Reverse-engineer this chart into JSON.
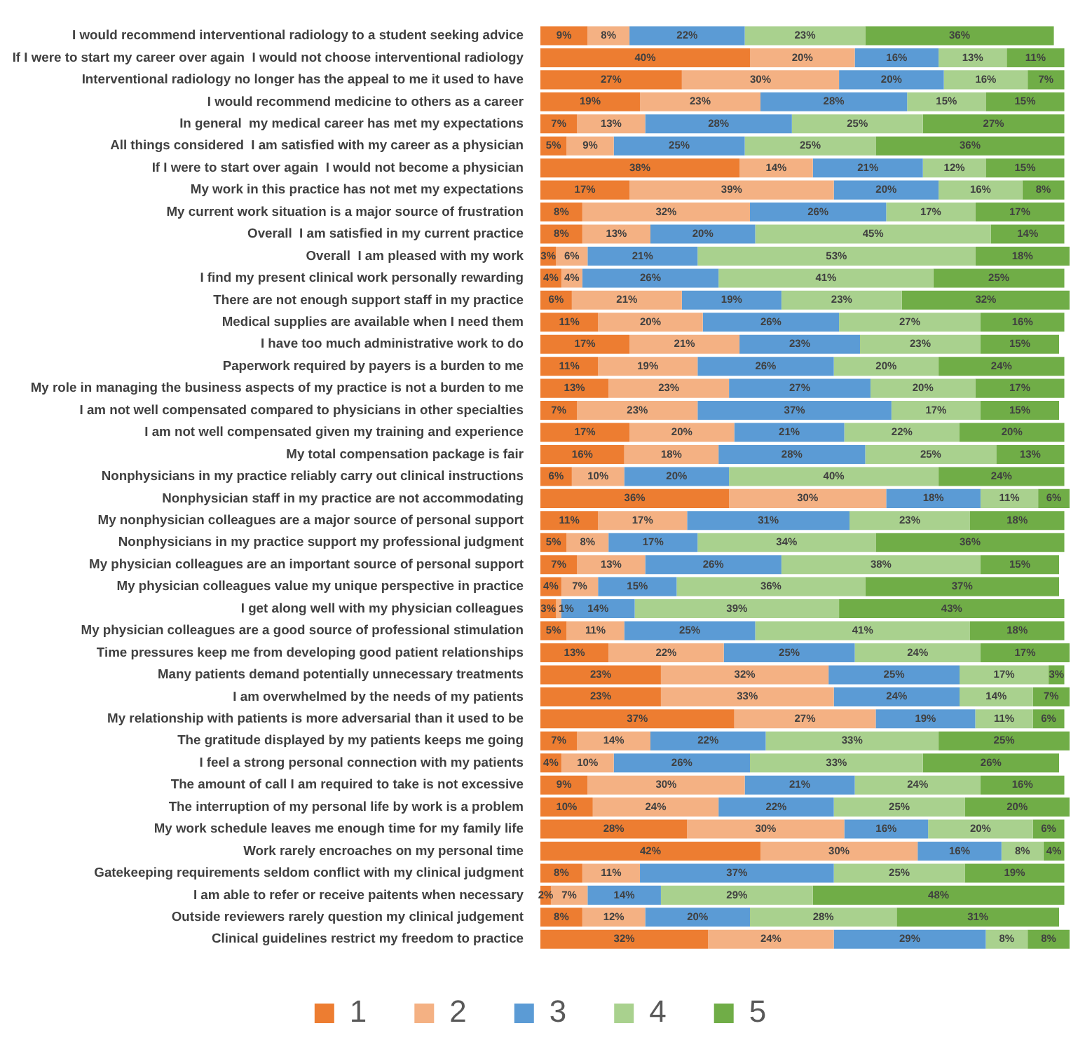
{
  "chart_data": {
    "type": "bar",
    "orientation": "horizontal",
    "stacked": true,
    "legend": "bottom",
    "categories": [
      "I would recommend interventional radiology to a student seeking advice",
      "If I were to start my career over again  I would not choose interventional radiology",
      "Interventional radiology no longer has the appeal to me it used to have",
      "I would recommend medicine to others as a career",
      "In general  my medical career has met my expectations",
      "All things considered  I am satisfied with my career as a physician",
      "If I were to start over again  I would not become a physician",
      "My work in this practice has not met my expectations",
      "My current work situation is a major source of frustration",
      "Overall  I am satisfied in my current practice",
      "Overall  I am pleased with my work",
      "I find my present clinical work personally rewarding",
      "There are not enough support staff in my practice",
      "Medical supplies are available when I need them",
      "I have too much administrative work to do",
      "Paperwork required by payers is a burden to me",
      "My role in managing the business aspects of my practice is not a burden to me",
      "I am not well compensated compared to physicians in other specialties",
      "I am not well compensated given my training and experience",
      "My total compensation package is fair",
      "Nonphysicians in my practice reliably carry out clinical instructions",
      "Nonphysician staff in my practice are not accommodating",
      "My nonphysician colleagues are a major source of personal support",
      "Nonphysicians in my practice support my professional judgment",
      "My physician colleagues are an important source of personal support",
      "My physician colleagues value my unique perspective in practice",
      "I get along well with my physician colleagues",
      "My physician colleagues are a good source of professional stimulation",
      "Time pressures keep me from developing good patient relationships",
      "Many patients demand potentially unnecessary treatments",
      "I am overwhelmed by the needs of my patients",
      "My relationship with patients is more adversarial than it used to be",
      "The gratitude displayed by my patients keeps me going",
      "I feel a strong personal connection with my patients",
      "The amount of call I am required to take is not excessive",
      "The interruption of my personal life by work is a problem",
      "My work schedule leaves me enough time for my family life",
      "Work rarely encroaches on my personal time",
      "Gatekeeping requirements seldom conflict with my clinical judgment",
      "I am able to refer or receive paitents when necessary",
      "Outside reviewers rarely question my clinical judgement",
      "Clinical guidelines restrict my freedom to practice"
    ],
    "series": [
      {
        "name": "1",
        "color": "#ed7d31",
        "values": [
          9,
          40,
          27,
          19,
          7,
          5,
          38,
          17,
          8,
          8,
          3,
          4,
          6,
          11,
          17,
          11,
          13,
          7,
          17,
          16,
          6,
          36,
          11,
          5,
          7,
          4,
          3,
          5,
          13,
          23,
          23,
          37,
          7,
          4,
          9,
          10,
          28,
          42,
          8,
          2,
          8,
          32
        ],
        "value_labels": [
          "9%",
          "40%",
          "27%",
          "19%",
          "7%",
          "5%",
          "38%",
          "17%",
          "8%",
          "8%",
          "3%",
          "4%",
          "6%",
          "11%",
          "17%",
          "11%",
          "13%",
          "7%",
          "17%",
          "16%",
          "6%",
          "36%",
          "11%",
          "5%",
          "7%",
          "4%",
          "3%",
          "5%",
          "13%",
          "23%",
          "23%",
          "37%",
          "7%",
          "4%",
          "9%",
          "10%",
          "28%",
          "42%",
          "8%",
          "2%",
          "8%",
          "32%"
        ]
      },
      {
        "name": "2",
        "color": "#f4b183",
        "values": [
          8,
          20,
          30,
          23,
          13,
          9,
          14,
          39,
          32,
          13,
          6,
          4,
          21,
          20,
          21,
          19,
          23,
          23,
          20,
          18,
          10,
          30,
          17,
          8,
          13,
          7,
          1,
          11,
          22,
          32,
          33,
          27,
          14,
          10,
          30,
          24,
          30,
          30,
          11,
          7,
          12,
          24
        ],
        "value_labels": [
          "8%",
          "20%",
          "30%",
          "23%",
          "13%",
          "9%",
          "14%",
          "39%",
          "32%",
          "13%",
          "6%",
          "4%",
          "21%",
          "20%",
          "21%",
          "19%",
          "23%",
          "23%",
          "20%",
          "18%",
          "10%",
          "30%",
          "17%",
          "8%",
          "13%",
          "7%",
          "1%",
          "11%",
          "22%",
          "32%",
          "33%",
          "27%",
          "14%",
          "10%",
          "30%",
          "24%",
          "30%",
          "30%",
          "11%",
          "7%",
          "12%",
          "24%"
        ]
      },
      {
        "name": "3",
        "color": "#5b9bd5",
        "values": [
          22,
          16,
          20,
          28,
          28,
          25,
          21,
          20,
          26,
          20,
          21,
          26,
          19,
          26,
          23,
          26,
          27,
          37,
          21,
          28,
          20,
          18,
          31,
          17,
          26,
          15,
          14,
          25,
          25,
          25,
          24,
          19,
          22,
          26,
          21,
          22,
          16,
          16,
          37,
          14,
          20,
          29
        ],
        "value_labels": [
          "22%",
          "16%",
          "20%",
          "28%",
          "28%",
          "25%",
          "21%",
          "20%",
          "26%",
          "20%",
          "21%",
          "26%",
          "19%",
          "26%",
          "23%",
          "26%",
          "27%",
          "37%",
          "21%",
          "28%",
          "20%",
          "18%",
          "31%",
          "17%",
          "26%",
          "15%",
          "14%",
          "25%",
          "25%",
          "25%",
          "24%",
          "19%",
          "22%",
          "26%",
          "21%",
          "22%",
          "16%",
          "16%",
          "37%",
          "14%",
          "20%",
          "29%"
        ]
      },
      {
        "name": "4",
        "color": "#a9d18e",
        "values": [
          23,
          13,
          16,
          15,
          25,
          25,
          12,
          16,
          17,
          45,
          53,
          41,
          23,
          27,
          23,
          20,
          20,
          17,
          22,
          25,
          40,
          11,
          23,
          34,
          38,
          36,
          39,
          41,
          24,
          17,
          14,
          11,
          33,
          33,
          24,
          25,
          20,
          8,
          25,
          29,
          28,
          8
        ],
        "value_labels": [
          "23%",
          "13%",
          "16%",
          "15%",
          "25%",
          "25%",
          "12%",
          "16%",
          "17%",
          "45%",
          "53%",
          "41%",
          "23%",
          "27%",
          "23%",
          "20%",
          "20%",
          "17%",
          "22%",
          "25%",
          "40%",
          "11%",
          "23%",
          "34%",
          "38%",
          "36%",
          "39%",
          "41%",
          "24%",
          "17%",
          "14%",
          "11%",
          "33%",
          "33%",
          "24%",
          "25%",
          "20%",
          "8%",
          "25%",
          "29%",
          "28%",
          "8%"
        ]
      },
      {
        "name": "5",
        "color": "#70ad47",
        "values": [
          36,
          11,
          7,
          15,
          27,
          36,
          15,
          8,
          17,
          14,
          18,
          25,
          32,
          16,
          15,
          24,
          17,
          15,
          20,
          13,
          24,
          6,
          18,
          36,
          15,
          37,
          43,
          18,
          17,
          3,
          7,
          6,
          25,
          26,
          16,
          20,
          6,
          4,
          19,
          48,
          31,
          8
        ],
        "value_labels": [
          "36%",
          "11%",
          "7%",
          "15%",
          "27%",
          "36%",
          "15%",
          "8%",
          "17%",
          "14%",
          "18%",
          "25%",
          "32%",
          "16%",
          "15%",
          "24%",
          "17%",
          "15%",
          "20%",
          "13%",
          "24%",
          "6%",
          "18%",
          "36%",
          "15%",
          "37%",
          "43%",
          "18%",
          "17%",
          "3%",
          "7%",
          "6%",
          "25%",
          "26%",
          "16%",
          "20%",
          "6%",
          "4%",
          "19%",
          "48%",
          "31%",
          "8%"
        ]
      }
    ]
  }
}
